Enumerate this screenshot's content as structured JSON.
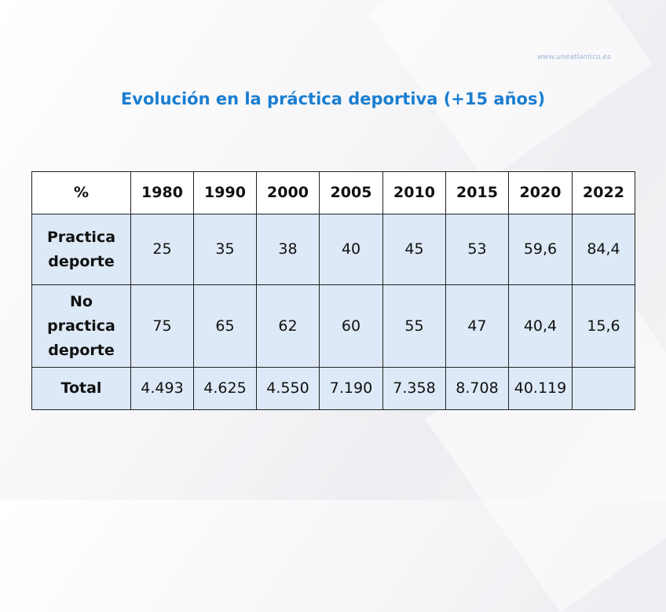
{
  "watermark": "www.uneatlantico.es",
  "title": "Evolución en la práctica deportiva (+15 años)",
  "table": {
    "headers": [
      "%",
      "1980",
      "1990",
      "2000",
      "2005",
      "2010",
      "2015",
      "2020",
      "2022"
    ],
    "rows": [
      {
        "label": [
          "Practica",
          "deporte"
        ],
        "values": [
          "25",
          "35",
          "38",
          "40",
          "45",
          "53",
          "59,6",
          "84,4"
        ]
      },
      {
        "label": [
          "No",
          "practica",
          "deporte"
        ],
        "values": [
          "75",
          "65",
          "62",
          "60",
          "55",
          "47",
          "40,4",
          "15,6"
        ]
      },
      {
        "label": [
          "Total"
        ],
        "values": [
          "4.493",
          "4.625",
          "4.550",
          "7.190",
          "7.358",
          "8.708",
          "40.119",
          ""
        ]
      }
    ]
  },
  "colors": {
    "title": "#1a7ed1",
    "cell_bg": "#dde9f6"
  }
}
